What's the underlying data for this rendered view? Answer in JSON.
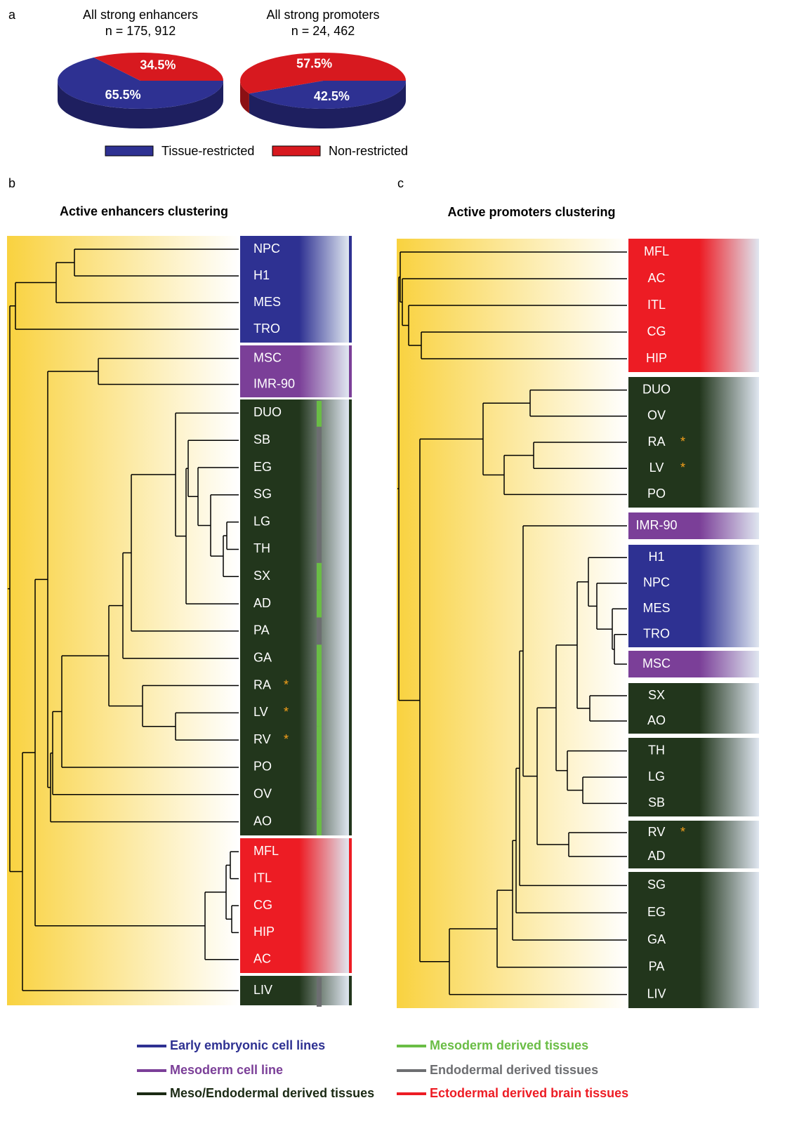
{
  "panel_labels": [
    "a",
    "b",
    "c"
  ],
  "chart_data": [
    {
      "type": "pie",
      "title": "All strong enhancers",
      "subtitle": "n = 175, 912",
      "categories": [
        "Tissue-restricted",
        "Non-restricted"
      ],
      "values": [
        65.5,
        34.5
      ],
      "value_labels": [
        "65.5%",
        "34.5%"
      ],
      "colors": [
        "#2e3192",
        "#d7191f"
      ]
    },
    {
      "type": "pie",
      "title": "All strong promoters",
      "subtitle": "n = 24, 462",
      "categories": [
        "Tissue-restricted",
        "Non-restricted"
      ],
      "values": [
        42.5,
        57.5
      ],
      "value_labels": [
        "42.5%",
        "57.5%"
      ],
      "colors": [
        "#2e3192",
        "#d7191f"
      ]
    }
  ],
  "dendrograms": [
    {
      "title": "Active enhancers clustering",
      "groups": [
        {
          "color": "#2e3192",
          "leaves": [
            {
              "label": "NPC"
            },
            {
              "label": "H1"
            },
            {
              "label": "MES"
            },
            {
              "label": "TRO"
            }
          ]
        },
        {
          "color": "#7b3f98",
          "leaves": [
            {
              "label": "MSC"
            },
            {
              "label": "IMR-90"
            }
          ]
        },
        {
          "color": "#22361c",
          "leaves": [
            {
              "label": "DUO",
              "bar": "#6abd45"
            },
            {
              "label": "SB",
              "bar": "#6d6e71"
            },
            {
              "label": "EG",
              "bar": "#6d6e71"
            },
            {
              "label": "SG",
              "bar": "#6d6e71"
            },
            {
              "label": "LG",
              "bar": "#6d6e71"
            },
            {
              "label": "TH",
              "bar": "#6d6e71"
            },
            {
              "label": "SX",
              "bar": "#6abd45"
            },
            {
              "label": "AD",
              "bar": "#6abd45"
            },
            {
              "label": "PA",
              "bar": "#6d6e71"
            },
            {
              "label": "GA",
              "bar": "#6abd45"
            },
            {
              "label": "RA",
              "mark": "*",
              "bar": "#6abd45"
            },
            {
              "label": "LV",
              "mark": "*",
              "bar": "#6abd45"
            },
            {
              "label": "RV",
              "mark": "*",
              "bar": "#6abd45"
            },
            {
              "label": "PO",
              "bar": "#6abd45"
            },
            {
              "label": "OV",
              "bar": "#6abd45"
            },
            {
              "label": "AO",
              "bar": "#6abd45"
            }
          ]
        },
        {
          "color": "#ed1c24",
          "leaves": [
            {
              "label": "MFL"
            },
            {
              "label": "ITL"
            },
            {
              "label": "CG"
            },
            {
              "label": "HIP"
            },
            {
              "label": "AC"
            }
          ]
        },
        {
          "color": "#22361c",
          "leaves": [
            {
              "label": "LIV",
              "bar": "#6d6e71"
            }
          ]
        }
      ]
    },
    {
      "title": "Active promoters clustering",
      "groups": [
        {
          "color": "#ed1c24",
          "leaves": [
            {
              "label": "MFL"
            },
            {
              "label": "AC"
            },
            {
              "label": "ITL"
            },
            {
              "label": "CG"
            },
            {
              "label": "HIP"
            }
          ]
        },
        {
          "color": "#22361c",
          "leaves": [
            {
              "label": "DUO"
            },
            {
              "label": "OV"
            },
            {
              "label": "RA",
              "mark": "*"
            },
            {
              "label": "LV",
              "mark": "*"
            },
            {
              "label": "PO"
            }
          ]
        },
        {
          "color": "#7b3f98",
          "leaves": [
            {
              "label": "IMR-90"
            }
          ]
        },
        {
          "color": "#2e3192",
          "leaves": [
            {
              "label": "H1"
            },
            {
              "label": "NPC"
            },
            {
              "label": "MES"
            },
            {
              "label": "TRO"
            }
          ]
        },
        {
          "color": "#7b3f98",
          "leaves": [
            {
              "label": "MSC"
            }
          ]
        },
        {
          "color": "#22361c",
          "leaves": [
            {
              "label": "SX"
            },
            {
              "label": "AO"
            }
          ]
        },
        {
          "color": "#22361c",
          "leaves": [
            {
              "label": "TH"
            },
            {
              "label": "LG"
            },
            {
              "label": "SB"
            }
          ]
        },
        {
          "color": "#22361c",
          "leaves": [
            {
              "label": "RV",
              "mark": "*"
            },
            {
              "label": "AD"
            }
          ]
        },
        {
          "color": "#22361c",
          "leaves": [
            {
              "label": "SG"
            },
            {
              "label": "EG"
            },
            {
              "label": "GA"
            },
            {
              "label": "PA"
            },
            {
              "label": "LIV"
            }
          ]
        }
      ]
    }
  ],
  "legend": [
    {
      "label": "Early embryonic cell lines",
      "color": "#2e3192"
    },
    {
      "label": "Mesoderm cell line",
      "color": "#7b3f98"
    },
    {
      "label": "Meso/Endodermal derived tissues",
      "color": "#1b2a14"
    },
    {
      "label": "Mesoderm derived tissues",
      "color": "#6abd45"
    },
    {
      "label": "Endodermal derived tissues",
      "color": "#6d6e71"
    },
    {
      "label": "Ectodermal derived brain tissues",
      "color": "#ed1c24"
    }
  ]
}
